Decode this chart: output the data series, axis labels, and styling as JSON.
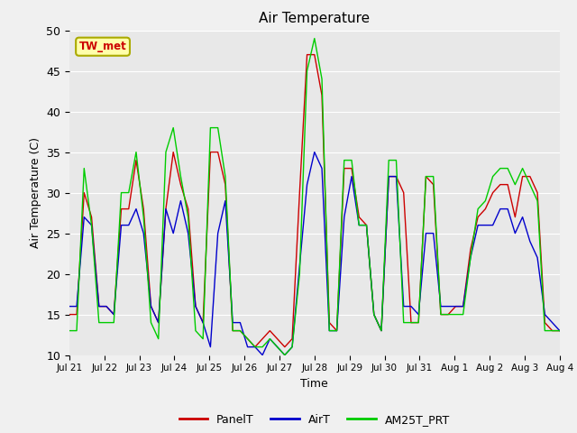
{
  "title": "Air Temperature",
  "xlabel": "Time",
  "ylabel": "Air Temperature (C)",
  "ylim": [
    10,
    50
  ],
  "background_color": "#f0f0f0",
  "plot_bg_color": "#e8e8e8",
  "annotation_text": "TW_met",
  "annotation_text_color": "#cc0000",
  "annotation_box_color": "#ffffaa",
  "annotation_box_edge": "#aaaa00",
  "legend_labels": [
    "PanelT",
    "AirT",
    "AM25T_PRT"
  ],
  "line_colors": [
    "#cc0000",
    "#0000cc",
    "#00cc00"
  ],
  "xtick_labels": [
    "Jul 21",
    "Jul 22",
    "Jul 23",
    "Jul 24",
    "Jul 25",
    "Jul 26",
    "Jul 27",
    "Jul 28",
    "Jul 29",
    "Jul 30",
    "Jul 31",
    "Aug 1",
    "Aug 2",
    "Aug 3",
    "Aug 4"
  ],
  "panelT": [
    15,
    15,
    30,
    27,
    16,
    16,
    15,
    28,
    28,
    34,
    28,
    16,
    14,
    28,
    35,
    31,
    28,
    16,
    14,
    35,
    35,
    31,
    13,
    13,
    12,
    11,
    12,
    13,
    12,
    11,
    12,
    30,
    47,
    47,
    42,
    14,
    13,
    33,
    33,
    27,
    26,
    15,
    13,
    32,
    32,
    30,
    14,
    14,
    32,
    31,
    15,
    15,
    16,
    16,
    23,
    27,
    28,
    30,
    31,
    31,
    27,
    32,
    32,
    30,
    14,
    13,
    13
  ],
  "airT": [
    16,
    16,
    27,
    26,
    16,
    16,
    15,
    26,
    26,
    28,
    25,
    16,
    14,
    28,
    25,
    29,
    25,
    16,
    14,
    11,
    25,
    29,
    14,
    14,
    11,
    11,
    10,
    12,
    11,
    10,
    11,
    21,
    31,
    35,
    33,
    13,
    13,
    27,
    32,
    26,
    26,
    15,
    13,
    32,
    32,
    16,
    16,
    15,
    25,
    25,
    16,
    16,
    16,
    16,
    22,
    26,
    26,
    26,
    28,
    28,
    25,
    27,
    24,
    22,
    15,
    14,
    13
  ],
  "am25t": [
    13,
    13,
    33,
    26,
    14,
    14,
    14,
    30,
    30,
    35,
    27,
    14,
    12,
    35,
    38,
    32,
    27,
    13,
    12,
    38,
    38,
    32,
    13,
    13,
    12,
    11,
    11,
    12,
    11,
    10,
    11,
    20,
    45,
    49,
    44,
    13,
    13,
    34,
    34,
    26,
    26,
    15,
    13,
    34,
    34,
    14,
    14,
    14,
    32,
    32,
    15,
    15,
    15,
    15,
    22,
    28,
    29,
    32,
    33,
    33,
    31,
    33,
    31,
    29,
    13,
    13,
    13
  ]
}
